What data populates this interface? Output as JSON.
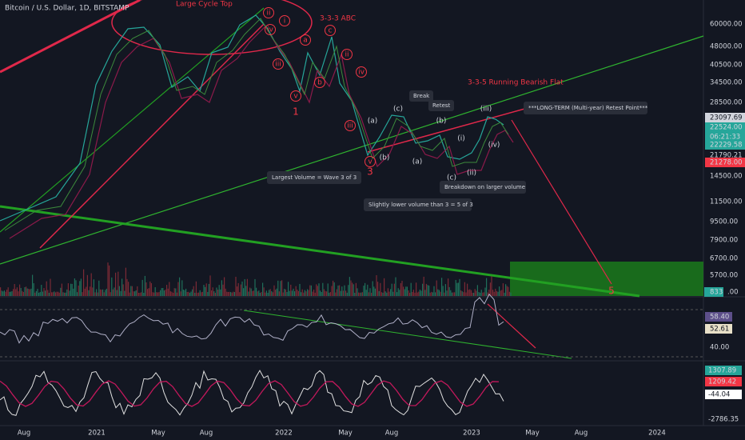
{
  "header": {
    "symbol": "Bitcoin / U.S. Dollar, 1D, BITSTAMP"
  },
  "price_axis": [
    "60000.00",
    "48000.00",
    "40500.00",
    "34500.00",
    "28500.00",
    "23097.69",
    "22524.00",
    "06:21:33",
    "22229.58",
    "21790.21",
    "21278.00",
    "14500.00",
    "11500.00",
    "9500.00",
    "7900.00",
    "6700.00",
    "5700.00",
    "833",
    ".00"
  ],
  "rsi_axis": [
    "58.40",
    "52.61",
    "40.00"
  ],
  "osc_axis": [
    "1307.89",
    "1209.42",
    "-44.04",
    "-2786.35"
  ],
  "time_axis": [
    "Aug",
    "2021",
    "May",
    "Aug",
    "2022",
    "May",
    "Aug",
    "2023",
    "May",
    "Aug",
    "2024"
  ],
  "annotations": {
    "cycle_top": "Large Cycle Top",
    "abc": "3-3-3 ABC",
    "flat": "3-3-5 Running Bearish Flat",
    "retest_point": "***LONG-TERM (Multi-year) Retest Point***",
    "break": "Break",
    "retest": "Retest",
    "largest_volume": "Largest Volume = Wave 3 of 3",
    "lower_volume": "Slightly lower volume than 3 = 5 of 3",
    "breakdown": "Breakdown on larger volume"
  },
  "waves": [
    "1",
    "3",
    "5",
    "c",
    "a",
    "b",
    "ii",
    "i",
    "iii",
    "iv",
    "v",
    "(a)",
    "(b)",
    "(c)",
    "(b)",
    "(a)",
    "(c)",
    "(i)",
    "(ii)",
    "(iii)",
    "(iv)",
    "ii",
    "iii",
    "iv",
    "v"
  ]
}
